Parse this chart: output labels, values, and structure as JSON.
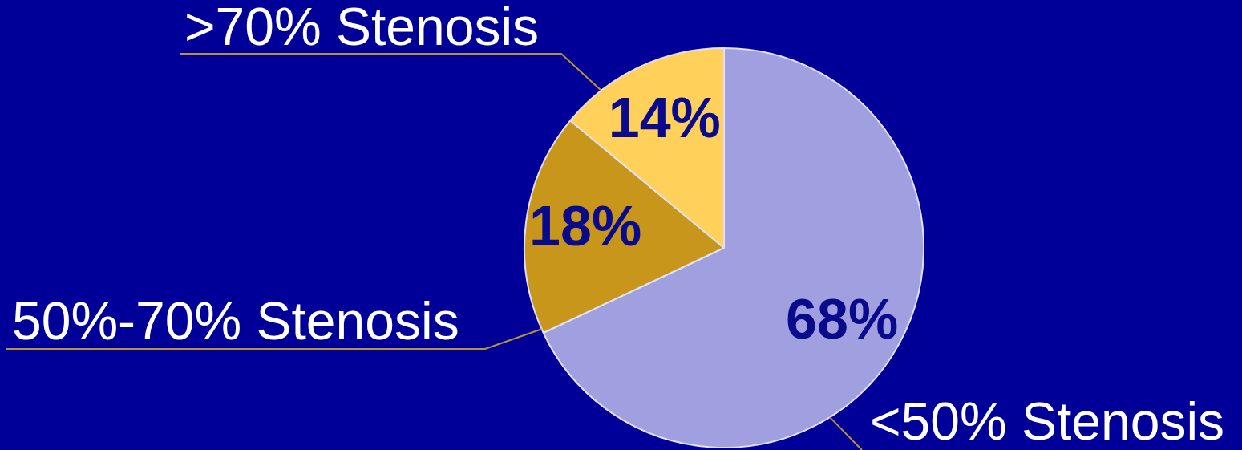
{
  "chart_data": {
    "type": "pie",
    "categories": [
      "<50% Stenosis",
      "50%-70% Stenosis",
      ">70% Stenosis"
    ],
    "values": [
      68,
      18,
      14
    ],
    "colors": [
      "#a0a0e0",
      "#c8961a",
      "#ffd05a"
    ],
    "value_labels": [
      "68%",
      "18%",
      "14%"
    ],
    "legend": false
  }
}
